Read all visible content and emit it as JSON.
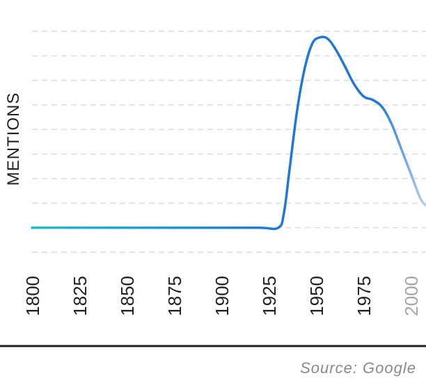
{
  "chart_data": {
    "type": "line",
    "title": "",
    "xlabel": "",
    "ylabel": "MENTIONS",
    "x_ticks": [
      "1800",
      "1825",
      "1850",
      "1875",
      "1900",
      "1925",
      "1950",
      "1975",
      "2000"
    ],
    "xlim": [
      1800,
      2008
    ],
    "ylim": [
      -1,
      8
    ],
    "y_ticks_shown": false,
    "grid": true,
    "legend": "none",
    "series": [
      {
        "points": [
          [
            1800,
            0
          ],
          [
            1820,
            0
          ],
          [
            1840,
            0
          ],
          [
            1860,
            0
          ],
          [
            1880,
            0
          ],
          [
            1900,
            0
          ],
          [
            1920,
            0
          ],
          [
            1930,
            0
          ],
          [
            1933,
            0.6
          ],
          [
            1936,
            2.4
          ],
          [
            1940,
            4.8
          ],
          [
            1944,
            6.5
          ],
          [
            1948,
            7.5
          ],
          [
            1952,
            7.75
          ],
          [
            1956,
            7.7
          ],
          [
            1960,
            7.3
          ],
          [
            1965,
            6.6
          ],
          [
            1970,
            5.85
          ],
          [
            1975,
            5.35
          ],
          [
            1980,
            5.2
          ],
          [
            1985,
            4.9
          ],
          [
            1990,
            4.2
          ],
          [
            1995,
            3.2
          ],
          [
            2000,
            2.2
          ],
          [
            2005,
            1.2
          ],
          [
            2008,
            0.9
          ]
        ]
      }
    ],
    "colors": {
      "line_start": "#1cc2c9",
      "line_main": "#1f78d9",
      "line_fade": "#b8d0f2",
      "grid": "#dcdcdc",
      "axis": "#222222",
      "faded_tick": "#a6a6a6"
    },
    "source": "Source: Google"
  }
}
